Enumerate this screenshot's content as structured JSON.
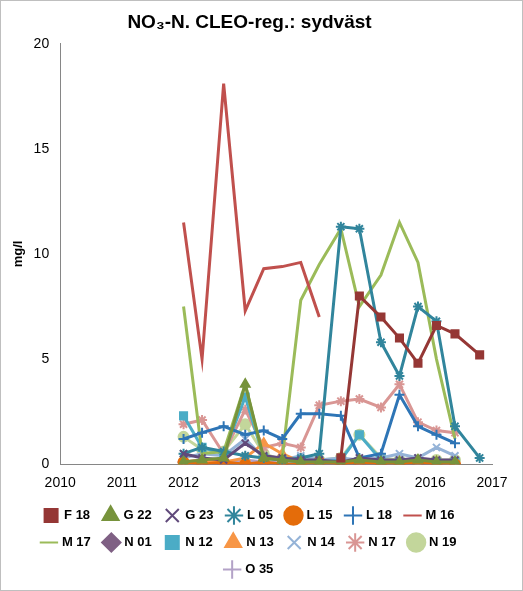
{
  "chart_data": {
    "type": "line",
    "title": "NO₃-N. CLEO-reg.: sydväst",
    "y_label": "mg/l",
    "x": [
      2012.0,
      2012.3,
      2012.65,
      2013.0,
      2013.3,
      2013.6,
      2013.9,
      2014.2,
      2014.55,
      2014.85,
      2015.2,
      2015.5,
      2015.8,
      2016.1,
      2016.4,
      2016.8
    ],
    "xlim": [
      2010,
      2017
    ],
    "xticks": [
      2010,
      2011,
      2012,
      2013,
      2014,
      2015,
      2016,
      2017
    ],
    "ylim": [
      0,
      20
    ],
    "yticks": [
      0,
      5,
      10,
      15,
      20
    ],
    "grid": false,
    "legend": "bottom",
    "series": [
      {
        "name": "F 18",
        "color": "#953735",
        "marker": "square",
        "values": [
          null,
          null,
          null,
          null,
          null,
          null,
          null,
          null,
          0.3,
          8.0,
          7.0,
          6.0,
          4.8,
          6.6,
          6.2,
          5.2
        ]
      },
      {
        "name": "G 22",
        "color": "#77933c",
        "marker": "triangle",
        "values": [
          0.1,
          0.2,
          0.3,
          3.8,
          0.3,
          0.2,
          0.1,
          0.1,
          0.1,
          0.2,
          0.1,
          0.1,
          0.2,
          0.1,
          0.1,
          null
        ]
      },
      {
        "name": "G 23",
        "color": "#604a7b",
        "marker": "x",
        "values": [
          0.5,
          0.3,
          0.2,
          1.0,
          0.4,
          0.3,
          0.2,
          0.2,
          0.1,
          0.3,
          0.2,
          0.2,
          0.3,
          0.2,
          0.2,
          null
        ]
      },
      {
        "name": "L 05",
        "color": "#31859c",
        "marker": "asterisk",
        "values": [
          0.5,
          0.8,
          0.6,
          0.4,
          0.3,
          0.2,
          0.3,
          0.5,
          11.3,
          11.2,
          5.8,
          4.2,
          7.5,
          6.8,
          1.8,
          0.3
        ]
      },
      {
        "name": "L 15",
        "color": "#e46c0a",
        "marker": "circle",
        "values": [
          0.1,
          0.0,
          0.1,
          0.0,
          0.1,
          0.0,
          0.0,
          0.1,
          0.0,
          0.1,
          0.0,
          0.0,
          0.1,
          0.0,
          0.0,
          null
        ]
      },
      {
        "name": "L 18",
        "color": "#2e75b6",
        "marker": "plus",
        "values": [
          1.2,
          1.5,
          1.8,
          1.4,
          1.6,
          1.2,
          2.4,
          2.4,
          2.3,
          0.3,
          0.5,
          3.3,
          1.8,
          1.4,
          1.0,
          null
        ]
      },
      {
        "name": "M 16",
        "color": "#c0504d",
        "marker": "none",
        "values": [
          11.5,
          5.0,
          18.1,
          7.3,
          9.3,
          9.4,
          9.6,
          7.0,
          null,
          null,
          null,
          null,
          null,
          null,
          null,
          null
        ]
      },
      {
        "name": "M 17",
        "color": "#9bbb59",
        "marker": "none",
        "values": [
          7.5,
          0.5,
          0.6,
          3.8,
          0.2,
          0.3,
          7.8,
          9.5,
          11.2,
          7.5,
          9.0,
          11.5,
          9.6,
          5.0,
          1.2,
          null
        ]
      },
      {
        "name": "N 01",
        "color": "#7f6084",
        "marker": "diamond",
        "values": [
          0.1,
          0.0,
          0.0,
          0.0,
          0.0,
          0.0,
          0.0,
          0.0,
          0.0,
          0.0,
          0.0,
          0.0,
          0.0,
          0.0,
          0.0,
          null
        ]
      },
      {
        "name": "N 12",
        "color": "#4bacc6",
        "marker": "square",
        "values": [
          2.3,
          0.8,
          0.5,
          3.2,
          0.3,
          0.2,
          0.1,
          0.1,
          0.2,
          1.4,
          0.2,
          0.1,
          0.1,
          0.1,
          0.1,
          null
        ]
      },
      {
        "name": "N 13",
        "color": "#f79646",
        "marker": "triangle",
        "values": [
          0.1,
          0.2,
          0.1,
          0.3,
          1.0,
          0.5,
          0.1,
          0.1,
          0.1,
          0.1,
          0.2,
          0.1,
          0.1,
          0.1,
          0.0,
          null
        ]
      },
      {
        "name": "N 14",
        "color": "#95b3d7",
        "marker": "x",
        "values": [
          0.3,
          0.5,
          0.4,
          1.2,
          0.3,
          0.2,
          0.4,
          0.2,
          0.3,
          0.2,
          0.3,
          0.5,
          0.3,
          0.8,
          0.4,
          null
        ]
      },
      {
        "name": "N 17",
        "color": "#d99694",
        "marker": "asterisk",
        "values": [
          1.9,
          2.1,
          0.5,
          2.6,
          0.8,
          1.0,
          0.8,
          2.8,
          3.0,
          3.1,
          2.7,
          3.8,
          2.0,
          1.6,
          1.5,
          null
        ]
      },
      {
        "name": "N 19",
        "color": "#c3d69b",
        "marker": "circle",
        "values": [
          1.3,
          0.7,
          0.6,
          1.9,
          0.5,
          0.2,
          0.1,
          0.2,
          0.3,
          1.4,
          0.3,
          0.2,
          0.2,
          0.2,
          0.2,
          null
        ]
      },
      {
        "name": "O 35",
        "color": "#b3a2c7",
        "marker": "plus",
        "values": [
          0.1,
          0.2,
          0.1,
          0.2,
          0.1,
          0.1,
          0.2,
          0.1,
          0.1,
          0.2,
          0.1,
          0.1,
          0.2,
          0.1,
          0.1,
          null
        ]
      }
    ]
  }
}
